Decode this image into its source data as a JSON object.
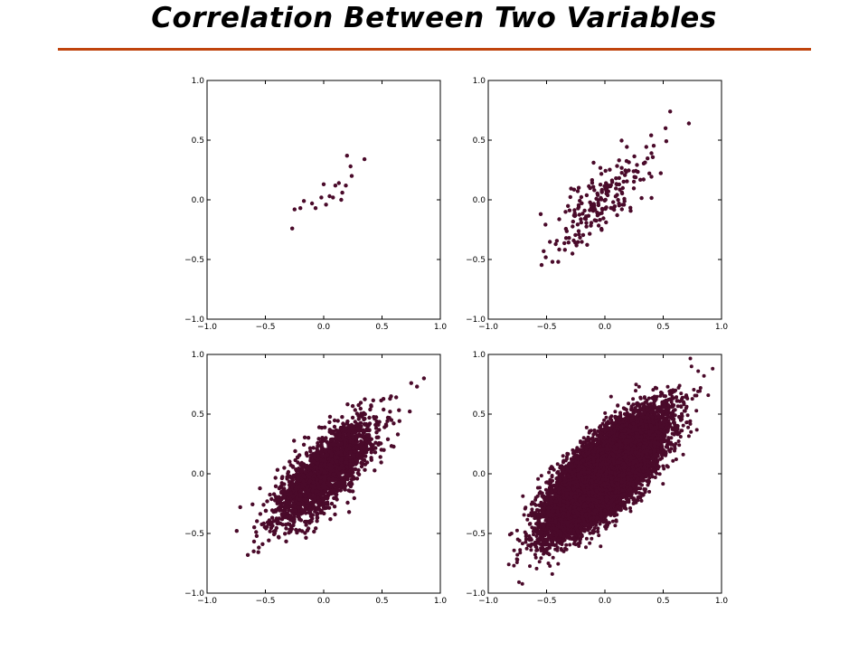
{
  "slide": {
    "title": "Correlation Between Two Variables",
    "rule_color": "#c0440d"
  },
  "marker_color": "#4a0a2a",
  "chart_data": [
    {
      "type": "scatter",
      "n_points": 20,
      "correlation": 0.9,
      "xlim": [
        -1.0,
        1.0
      ],
      "ylim": [
        -1.0,
        1.0
      ],
      "xticks": [
        "−1.0",
        "−0.5",
        "0.0",
        "0.5",
        "1.0"
      ],
      "yticks": [
        "−1.0",
        "−0.5",
        "0.0",
        "0.5",
        "1.0"
      ],
      "points": [
        [
          -0.27,
          -0.24
        ],
        [
          -0.25,
          -0.08
        ],
        [
          -0.2,
          -0.07
        ],
        [
          -0.17,
          -0.01
        ],
        [
          -0.1,
          -0.03
        ],
        [
          -0.07,
          -0.07
        ],
        [
          -0.02,
          0.02
        ],
        [
          0.0,
          0.13
        ],
        [
          0.02,
          -0.04
        ],
        [
          0.05,
          0.03
        ],
        [
          0.08,
          0.02
        ],
        [
          0.1,
          0.12
        ],
        [
          0.13,
          0.14
        ],
        [
          0.15,
          0.0
        ],
        [
          0.16,
          0.06
        ],
        [
          0.19,
          0.12
        ],
        [
          0.2,
          0.37
        ],
        [
          0.23,
          0.28
        ],
        [
          0.24,
          0.2
        ],
        [
          0.35,
          0.34
        ]
      ]
    },
    {
      "type": "scatter",
      "n_points": 200,
      "correlation": 0.75,
      "xlim": [
        -1.0,
        1.0
      ],
      "ylim": [
        -1.0,
        1.0
      ],
      "xticks": [
        "−1.0",
        "−0.5",
        "0.0",
        "0.5",
        "1.0"
      ],
      "yticks": [
        "−1.0",
        "−0.5",
        "0.0",
        "0.5",
        "1.0"
      ],
      "extreme_points": [
        [
          0.56,
          0.74
        ],
        [
          0.52,
          0.6
        ],
        [
          0.72,
          0.64
        ],
        [
          -0.45,
          -0.52
        ],
        [
          -0.4,
          -0.52
        ],
        [
          -0.55,
          -0.12
        ]
      ]
    },
    {
      "type": "scatter",
      "n_points": 2000,
      "correlation": 0.75,
      "xlim": [
        -1.0,
        1.0
      ],
      "ylim": [
        -1.0,
        1.0
      ],
      "xticks": [
        "−1.0",
        "−0.5",
        "0.0",
        "0.5",
        "1.0"
      ],
      "yticks": [
        "−1.0",
        "−0.5",
        "0.0",
        "0.5",
        "1.0"
      ],
      "extreme_points": [
        [
          0.86,
          0.8
        ],
        [
          0.75,
          0.76
        ],
        [
          0.8,
          0.73
        ],
        [
          -0.65,
          -0.68
        ],
        [
          -0.6,
          -0.65
        ]
      ]
    },
    {
      "type": "scatter",
      "n_points": 20000,
      "correlation": 0.75,
      "xlim": [
        -1.0,
        1.0
      ],
      "ylim": [
        -1.0,
        1.0
      ],
      "xticks": [
        "−1.0",
        "−0.5",
        "0.0",
        "0.5",
        "1.0"
      ],
      "yticks": [
        "−1.0",
        "−0.5",
        "0.0",
        "0.5",
        "1.0"
      ],
      "extreme_points": [
        [
          0.8,
          0.86
        ],
        [
          0.85,
          0.82
        ],
        [
          0.82,
          0.72
        ],
        [
          -0.78,
          -0.77
        ],
        [
          -0.75,
          -0.72
        ],
        [
          -0.8,
          -0.5
        ]
      ]
    }
  ]
}
